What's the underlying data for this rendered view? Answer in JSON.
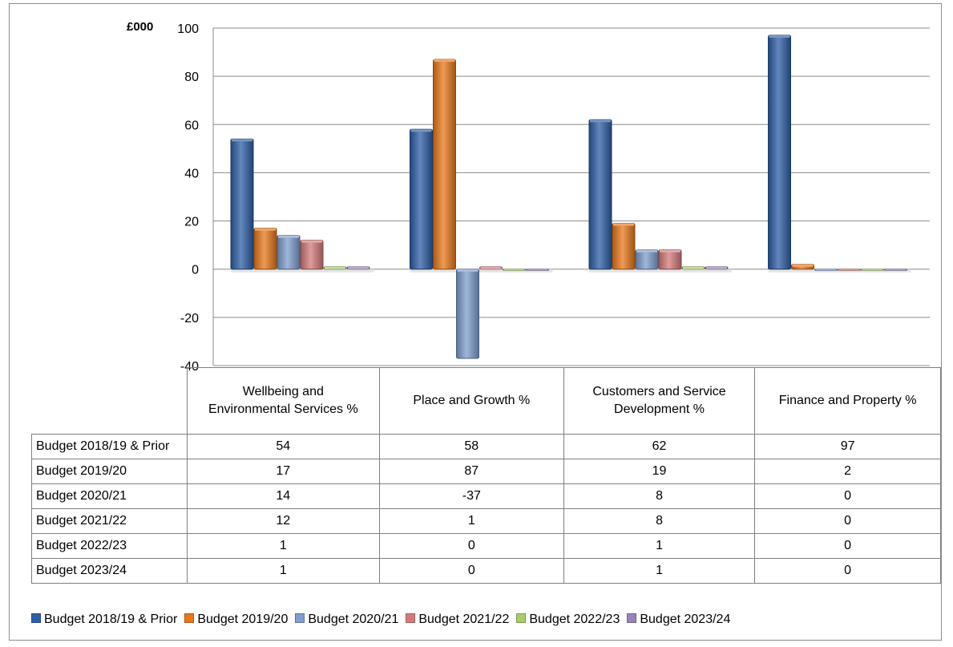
{
  "chart_data": {
    "type": "bar",
    "unit_label": "£000",
    "categories": [
      "Wellbeing and Environmental Services %",
      "Place and Growth %",
      "Customers and Service Development %",
      "Finance and Property %"
    ],
    "series": [
      {
        "name": "Budget 2018/19 & Prior",
        "color": "#2e5fa6",
        "values": [
          54,
          58,
          62,
          97
        ]
      },
      {
        "name": "Budget 2019/20",
        "color": "#e8781c",
        "values": [
          17,
          87,
          19,
          2
        ]
      },
      {
        "name": "Budget 2020/21",
        "color": "#7f9dcf",
        "values": [
          14,
          -37,
          8,
          0
        ]
      },
      {
        "name": "Budget 2021/22",
        "color": "#d37b7b",
        "values": [
          12,
          1,
          8,
          0
        ]
      },
      {
        "name": "Budget 2022/23",
        "color": "#a8cc6e",
        "values": [
          1,
          0,
          1,
          0
        ]
      },
      {
        "name": "Budget 2023/24",
        "color": "#9a83b8",
        "values": [
          1,
          0,
          1,
          0
        ]
      }
    ],
    "ylim": [
      -40,
      100
    ],
    "yticks": [
      -40,
      -20,
      0,
      20,
      40,
      60,
      80,
      100
    ],
    "grid": true,
    "legend": "bottom",
    "table": [
      [
        "54",
        "58",
        "62",
        "97"
      ],
      [
        "17",
        "87",
        "19",
        "2"
      ],
      [
        "14",
        "-37",
        "8",
        "0"
      ],
      [
        "12",
        "1",
        "8",
        "0"
      ],
      [
        "1",
        "0",
        "1",
        "0"
      ],
      [
        "1",
        "0",
        "1",
        "0"
      ]
    ]
  }
}
